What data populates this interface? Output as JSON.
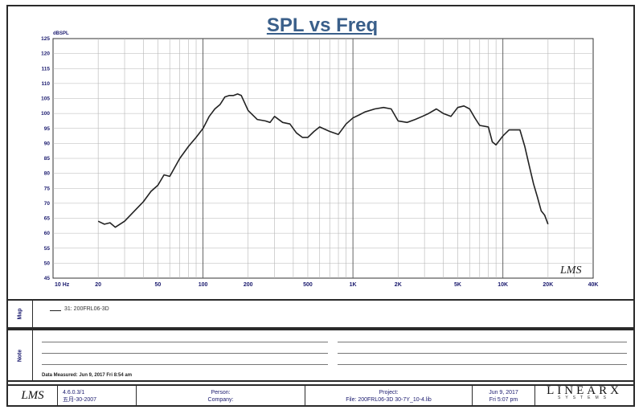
{
  "chart_data": {
    "type": "line",
    "title": "SPL vs Freq",
    "ylabel": "dBSPL",
    "xscale": "log",
    "xlim": [
      10,
      40000
    ],
    "ylim": [
      45,
      125
    ],
    "grid": true,
    "yticks": [
      "45",
      "50",
      "55",
      "60",
      "65",
      "70",
      "75",
      "80",
      "85",
      "90",
      "95",
      "100",
      "105",
      "110",
      "115",
      "120",
      "125"
    ],
    "xticks": [
      {
        "value": 10,
        "label": "10 Hz"
      },
      {
        "value": 20,
        "label": "20"
      },
      {
        "value": 50,
        "label": "50"
      },
      {
        "value": 100,
        "label": "100"
      },
      {
        "value": 200,
        "label": "200"
      },
      {
        "value": 500,
        "label": "500"
      },
      {
        "value": 1000,
        "label": "1K"
      },
      {
        "value": 2000,
        "label": "2K"
      },
      {
        "value": 5000,
        "label": "5K"
      },
      {
        "value": 10000,
        "label": "10K"
      },
      {
        "value": 20000,
        "label": "20K"
      },
      {
        "value": 40000,
        "label": "40K"
      }
    ],
    "series": [
      {
        "name": "31: 200FRL06-3D",
        "color": "#222222",
        "x": [
          20,
          22,
          24,
          26,
          30,
          35,
          40,
          45,
          50,
          55,
          60,
          70,
          80,
          90,
          100,
          110,
          120,
          130,
          140,
          150,
          160,
          170,
          180,
          200,
          230,
          260,
          280,
          300,
          340,
          380,
          420,
          460,
          500,
          550,
          600,
          700,
          800,
          900,
          1000,
          1100,
          1200,
          1400,
          1600,
          1800,
          2000,
          2300,
          2600,
          2900,
          3200,
          3600,
          4000,
          4500,
          5000,
          5500,
          6000,
          6500,
          7000,
          8000,
          8500,
          9000,
          10000,
          11000,
          12000,
          13000,
          14000,
          15000,
          16000,
          17000,
          18000,
          19000,
          20000
        ],
        "y": [
          64,
          63,
          63.5,
          62,
          64,
          67.5,
          70.5,
          74,
          76,
          79.5,
          79,
          85,
          89,
          92,
          95,
          99,
          101.5,
          103,
          105.5,
          106,
          106,
          106.5,
          106,
          101,
          98,
          97.5,
          97,
          99,
          97,
          96.5,
          93.5,
          92,
          92,
          94,
          95.5,
          94,
          93,
          96.5,
          98.5,
          99.5,
          100.5,
          101.5,
          102,
          101.5,
          97.5,
          97,
          98,
          99,
          100,
          101.5,
          100,
          99,
          102,
          102.5,
          101.5,
          98.5,
          96,
          95.5,
          90.5,
          89.5,
          92.5,
          94.5,
          94.5,
          94.5,
          89,
          82.5,
          76.5,
          72,
          67.5,
          66,
          63
        ]
      }
    ]
  },
  "legend": {
    "entry": "31: 200FRL06-3D"
  },
  "panels": {
    "map_label": "Map",
    "note_label": "Note",
    "data_measured": "Data Measured: Jun 9, 2017 Fri 8:54 am"
  },
  "watermark": "LMS",
  "footer": {
    "logo": "LMS",
    "version_line1": "4.6.0.3/1",
    "version_line2": "五月-30-2007",
    "person": "Person:",
    "company": "Company:",
    "project": "Project:",
    "file": "File: 200FRL06-3D 30-7Y_10-4.lib",
    "date_line1": "Jun 9, 2017",
    "date_line2": "Fri  5:07 pm",
    "brand": "LINEARX",
    "brand_sub": "SYSTEMS"
  },
  "colors": {
    "title": "#3a5f8a",
    "axis_text": "#1a1a6e",
    "grid": "#b0b0b0",
    "major_grid": "#555555",
    "curve": "#222222"
  }
}
